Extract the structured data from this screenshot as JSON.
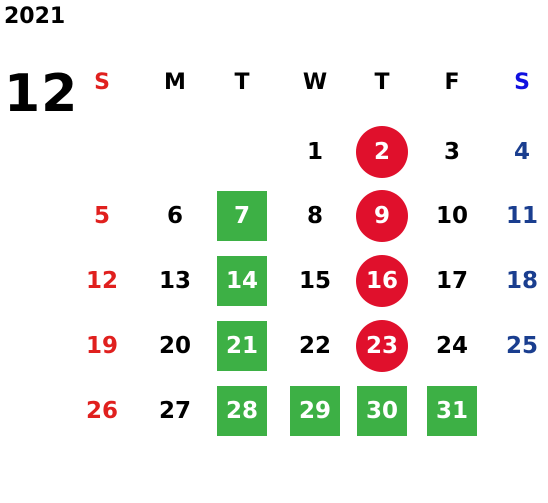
{
  "year": "2021",
  "month": "12",
  "colors": {
    "sunday_text": "#e0201e",
    "saturday_text": "#1a3e8f",
    "saturday_header": "#1010e0",
    "weekday_text": "#000000",
    "green_box": "#3db045",
    "red_circle": "#e0102c",
    "highlight_text": "#ffffff"
  },
  "weekdays": [
    "S",
    "M",
    "T",
    "W",
    "T",
    "F",
    "S"
  ],
  "weeks": [
    [
      {
        "day": "",
        "style": ""
      },
      {
        "day": "",
        "style": ""
      },
      {
        "day": "",
        "style": ""
      },
      {
        "day": "1",
        "style": ""
      },
      {
        "day": "2",
        "style": "red-circle"
      },
      {
        "day": "3",
        "style": ""
      },
      {
        "day": "4",
        "style": ""
      }
    ],
    [
      {
        "day": "5",
        "style": ""
      },
      {
        "day": "6",
        "style": ""
      },
      {
        "day": "7",
        "style": "green-box"
      },
      {
        "day": "8",
        "style": ""
      },
      {
        "day": "9",
        "style": "red-circle"
      },
      {
        "day": "10",
        "style": ""
      },
      {
        "day": "11",
        "style": ""
      }
    ],
    [
      {
        "day": "12",
        "style": ""
      },
      {
        "day": "13",
        "style": ""
      },
      {
        "day": "14",
        "style": "green-box"
      },
      {
        "day": "15",
        "style": ""
      },
      {
        "day": "16",
        "style": "red-circle"
      },
      {
        "day": "17",
        "style": ""
      },
      {
        "day": "18",
        "style": ""
      }
    ],
    [
      {
        "day": "19",
        "style": ""
      },
      {
        "day": "20",
        "style": ""
      },
      {
        "day": "21",
        "style": "green-box"
      },
      {
        "day": "22",
        "style": ""
      },
      {
        "day": "23",
        "style": "red-circle"
      },
      {
        "day": "24",
        "style": ""
      },
      {
        "day": "25",
        "style": ""
      }
    ],
    [
      {
        "day": "26",
        "style": ""
      },
      {
        "day": "27",
        "style": ""
      },
      {
        "day": "28",
        "style": "green-box"
      },
      {
        "day": "29",
        "style": "green-box"
      },
      {
        "day": "30",
        "style": "green-box"
      },
      {
        "day": "31",
        "style": "green-box"
      },
      {
        "day": "",
        "style": ""
      }
    ]
  ]
}
